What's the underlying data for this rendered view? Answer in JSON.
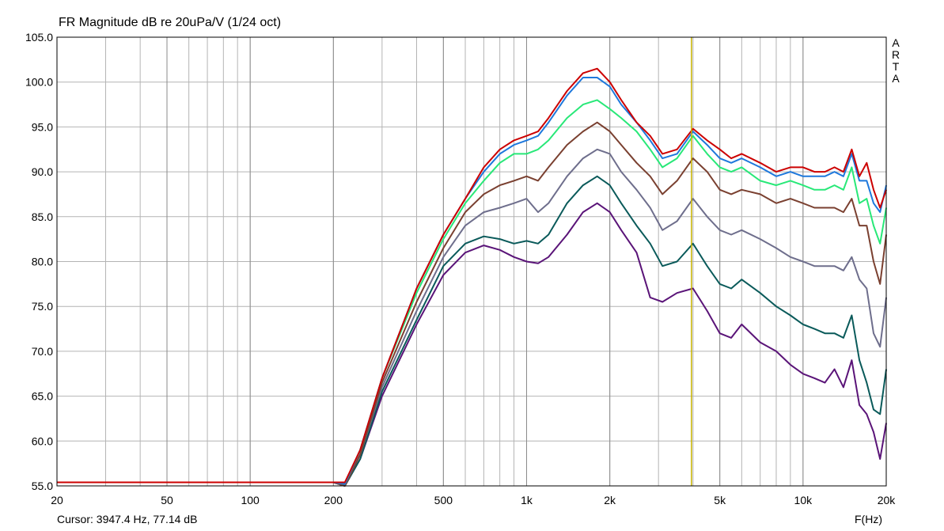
{
  "title": "FR Magnitude dB re 20uPa/V (1/24 oct)",
  "cursor_readout": "Cursor: 3947.4 Hz, 77.14 dB",
  "brand_letters": [
    "A",
    "R",
    "T",
    "A"
  ],
  "colors": {
    "grid": "#b4b4b4",
    "cursor": "#c8b400",
    "axis": "#000000"
  },
  "chart_data": {
    "type": "line",
    "title": "FR Magnitude dB re 20uPa/V (1/24 oct)",
    "xlabel": "F(Hz)",
    "ylabel": "",
    "xscale": "log",
    "xlim": [
      20,
      20000
    ],
    "ylim": [
      55,
      105
    ],
    "grid": true,
    "x_ticks": [
      20,
      50,
      100,
      200,
      500,
      1000,
      2000,
      5000,
      10000,
      20000
    ],
    "x_tick_labels": [
      "20",
      "50",
      "100",
      "200",
      "500",
      "1k",
      "2k",
      "5k",
      "10k",
      "20k"
    ],
    "y_ticks": [
      55,
      60,
      65,
      70,
      75,
      80,
      85,
      90,
      95,
      100,
      105
    ],
    "y_tick_labels": [
      "55.0",
      "60.0",
      "65.0",
      "70.0",
      "75.0",
      "80.0",
      "85.0",
      "90.0",
      "95.0",
      "100.0",
      "105.0"
    ],
    "cursor_x": 3947.4,
    "x": [
      20,
      200,
      220,
      250,
      300,
      400,
      500,
      600,
      700,
      800,
      900,
      1000,
      1100,
      1200,
      1400,
      1600,
      1800,
      2000,
      2200,
      2500,
      2800,
      3100,
      3500,
      4000,
      4500,
      5000,
      5500,
      6000,
      7000,
      8000,
      9000,
      10000,
      11000,
      12000,
      13000,
      14000,
      15000,
      16000,
      17000,
      18000,
      19000,
      20000
    ],
    "series": [
      {
        "color": "#cc0000",
        "values": [
          55.4,
          55.4,
          55.4,
          59,
          67,
          77,
          83,
          87,
          90.5,
          92.5,
          93.5,
          94,
          94.5,
          96,
          99,
          101,
          101.5,
          100,
          98,
          95.5,
          94,
          92,
          92.5,
          94.8,
          93.5,
          92.5,
          91.5,
          92,
          91,
          90,
          90.5,
          90.5,
          90,
          90,
          90.5,
          90,
          92.5,
          89.5,
          91,
          88,
          86,
          88
        ]
      },
      {
        "color": "#1e78dc",
        "values": [
          55.4,
          55.4,
          55.2,
          59,
          67,
          77,
          83,
          87,
          90,
          92,
          93,
          93.5,
          94,
          95.5,
          98.5,
          100.5,
          100.5,
          99.5,
          97.5,
          95.5,
          93.5,
          91.5,
          92,
          94.5,
          93,
          91.5,
          91,
          91.5,
          90.5,
          89.5,
          90,
          89.5,
          89.5,
          89.5,
          90,
          89.5,
          92,
          89,
          89,
          86.5,
          85.5,
          88.5
        ]
      },
      {
        "color": "#28e878",
        "values": [
          55.4,
          55.4,
          55.2,
          59,
          67,
          76.5,
          82.5,
          86.5,
          89,
          91,
          92,
          92,
          92.5,
          93.5,
          96,
          97.5,
          98,
          97,
          96,
          94.5,
          92.5,
          90.5,
          91.5,
          94,
          92,
          90.5,
          90,
          90.5,
          89,
          88.5,
          89,
          88.5,
          88,
          88,
          88.5,
          88,
          90.5,
          86.5,
          87,
          84,
          82,
          86
        ]
      },
      {
        "color": "#7a4030",
        "values": [
          55.4,
          55.4,
          55,
          58.5,
          66.5,
          75.5,
          81.5,
          85.5,
          87.5,
          88.5,
          89,
          89.5,
          89,
          90.5,
          93,
          94.5,
          95.5,
          94.5,
          93,
          91,
          89.5,
          87.5,
          89,
          91.5,
          90,
          88,
          87.5,
          88,
          87.5,
          86.5,
          87,
          86.5,
          86,
          86,
          86,
          85.5,
          87,
          84,
          84,
          80,
          77.5,
          83
        ]
      },
      {
        "color": "#6e6e8c",
        "values": [
          55.4,
          55.4,
          55,
          58.5,
          66,
          74.5,
          80.5,
          84,
          85.5,
          86,
          86.5,
          87,
          85.5,
          86.5,
          89.5,
          91.5,
          92.5,
          92,
          90,
          88,
          86,
          83.5,
          84.5,
          87,
          85,
          83.5,
          83,
          83.5,
          82.5,
          81.5,
          80.5,
          80,
          79.5,
          79.5,
          79.5,
          79,
          80.5,
          78,
          77,
          72,
          70.5,
          76
        ]
      },
      {
        "color": "#0a5a5a",
        "values": [
          55.4,
          55.4,
          55,
          58,
          65.5,
          73.5,
          79.5,
          82,
          82.8,
          82.5,
          82,
          82.3,
          82,
          83,
          86.5,
          88.5,
          89.5,
          88.5,
          86.5,
          84,
          82,
          79.5,
          80,
          82,
          79.5,
          77.5,
          77,
          78,
          76.5,
          75,
          74,
          73,
          72.5,
          72,
          72,
          71.5,
          74,
          69,
          66.5,
          63.5,
          63,
          68
        ]
      },
      {
        "color": "#5a1478",
        "values": [
          55.4,
          55.4,
          55,
          58,
          65,
          73,
          78.5,
          81,
          81.8,
          81.3,
          80.5,
          80,
          79.8,
          80.5,
          83,
          85.5,
          86.5,
          85.5,
          83.5,
          81,
          76,
          75.5,
          76.5,
          77,
          74.5,
          72,
          71.5,
          73,
          71,
          70,
          68.5,
          67.5,
          67,
          66.5,
          68,
          66,
          69,
          64,
          63,
          61,
          58,
          62
        ]
      }
    ]
  }
}
